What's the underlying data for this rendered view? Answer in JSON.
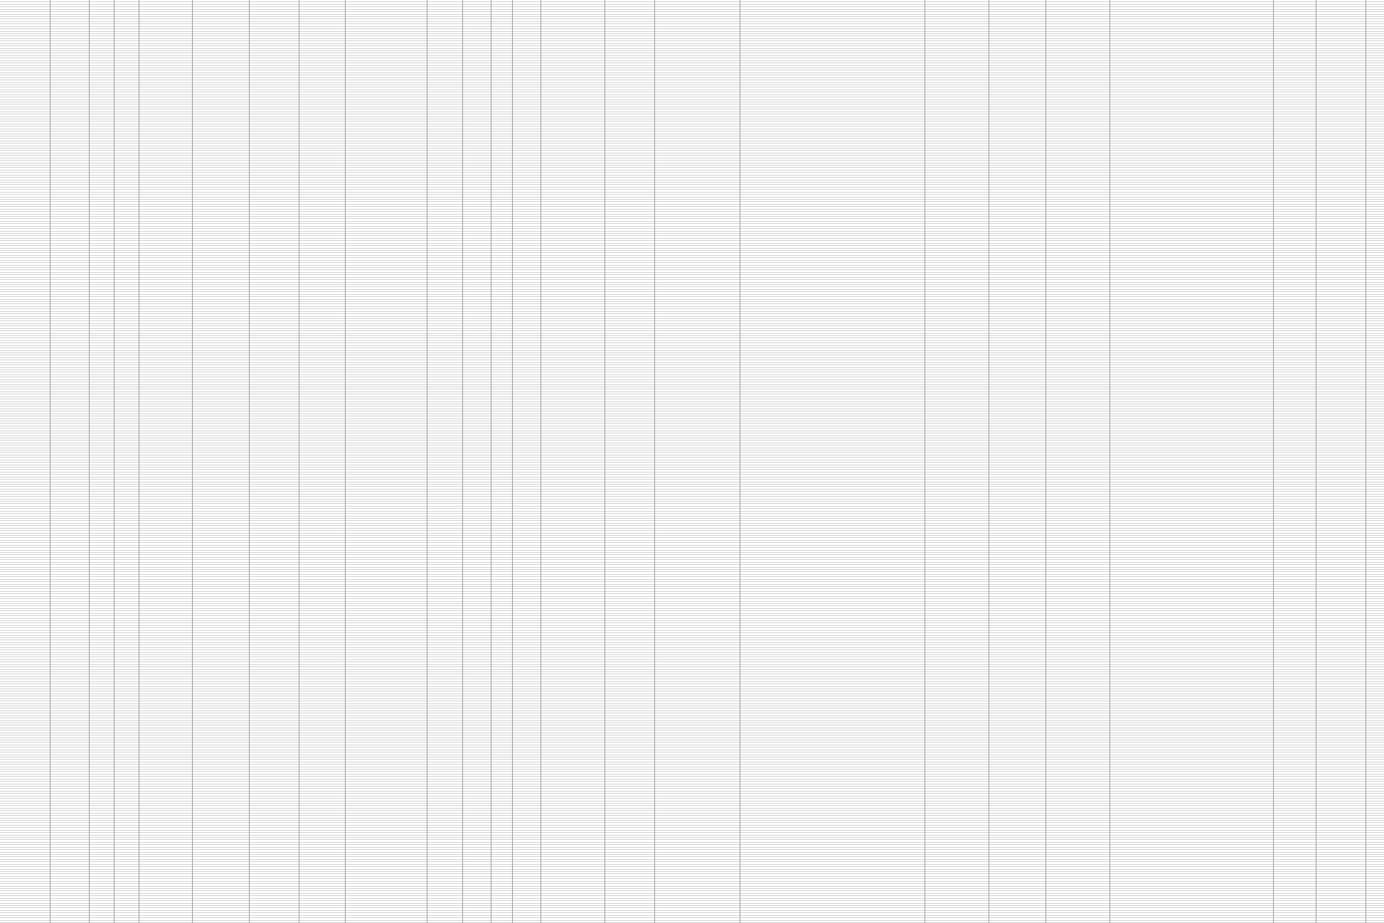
{
  "sheet": {
    "row_count": 379,
    "column_count": 26,
    "columns": [
      {
        "key": "c1"
      },
      {
        "key": "c2"
      },
      {
        "key": "c3"
      },
      {
        "key": "c4"
      },
      {
        "key": "c5"
      },
      {
        "key": "c6"
      },
      {
        "key": "c7"
      },
      {
        "key": "c8"
      },
      {
        "key": "c9"
      },
      {
        "key": "c10"
      },
      {
        "key": "c11"
      },
      {
        "key": "c12"
      },
      {
        "key": "c13"
      },
      {
        "key": "c14"
      },
      {
        "key": "c15"
      },
      {
        "key": "c16"
      },
      {
        "key": "c17"
      },
      {
        "key": "c18"
      },
      {
        "key": "c19"
      },
      {
        "key": "c20"
      },
      {
        "key": "c21"
      },
      {
        "key": "c22"
      },
      {
        "key": "c23"
      },
      {
        "key": "c24"
      },
      {
        "key": "c25"
      },
      {
        "key": "c26"
      }
    ],
    "rows": []
  },
  "colors": {
    "background": "#ffffff",
    "gridline": "#d0d0d0",
    "column_rule": "#9a9a9a",
    "text": "#111111"
  }
}
